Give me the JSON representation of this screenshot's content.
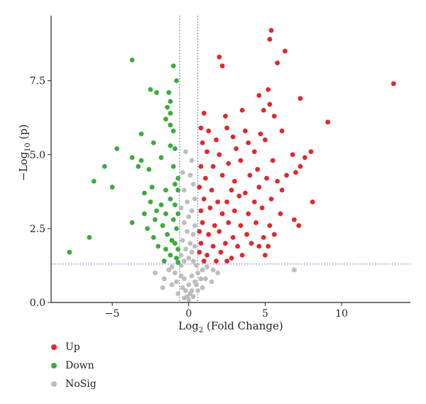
{
  "chart_data": {
    "type": "scatter",
    "xlabel_main": "Log",
    "xlabel_sub": "2",
    "xlabel_rest": " (Fold Change)",
    "ylabel_main": "−Log",
    "ylabel_sub": "10",
    "ylabel_rest": " (p)",
    "xlim": [
      -9,
      14.5
    ],
    "ylim": [
      0,
      9.7
    ],
    "x_ticks": [
      -5,
      0,
      5,
      10
    ],
    "x_tick_labels": [
      "−5",
      "0",
      "5",
      "10"
    ],
    "y_ticks": [
      0,
      2.5,
      5,
      7.5
    ],
    "y_tick_labels": [
      "0.0",
      "2.5",
      "5.0",
      "7.5"
    ],
    "thresholds": {
      "x": [
        -0.6,
        0.6
      ],
      "y": 1.3
    },
    "legend_position": "bottom-left",
    "series": [
      {
        "name": "Up",
        "color": "#e0292b",
        "points": [
          [
            5.4,
            9.2
          ],
          [
            5.3,
            8.9
          ],
          [
            6.3,
            8.5
          ],
          [
            2.0,
            8.3
          ],
          [
            5.8,
            8.1
          ],
          [
            2.2,
            8.0
          ],
          [
            13.4,
            7.4
          ],
          [
            5.2,
            7.2
          ],
          [
            7.3,
            6.9
          ],
          [
            4.6,
            7.0
          ],
          [
            5.3,
            6.7
          ],
          [
            9.1,
            6.1
          ],
          [
            1.0,
            6.4
          ],
          [
            2.4,
            6.3
          ],
          [
            3.5,
            6.5
          ],
          [
            4.9,
            6.5
          ],
          [
            5.6,
            6.3
          ],
          [
            0.8,
            5.9
          ],
          [
            1.3,
            5.8
          ],
          [
            2.5,
            5.9
          ],
          [
            3.7,
            5.8
          ],
          [
            4.7,
            5.7
          ],
          [
            6.1,
            5.8
          ],
          [
            0.9,
            5.4
          ],
          [
            1.8,
            5.5
          ],
          [
            2.9,
            5.6
          ],
          [
            3.9,
            5.4
          ],
          [
            5.0,
            5.5
          ],
          [
            6.8,
            5.0
          ],
          [
            7.6,
            4.9
          ],
          [
            8.0,
            5.1
          ],
          [
            1.2,
            5.1
          ],
          [
            2.0,
            5.0
          ],
          [
            3.1,
            5.2
          ],
          [
            4.3,
            5.1
          ],
          [
            5.5,
            4.8
          ],
          [
            7.3,
            4.6
          ],
          [
            0.8,
            4.6
          ],
          [
            1.6,
            4.6
          ],
          [
            2.6,
            4.7
          ],
          [
            3.4,
            4.8
          ],
          [
            4.5,
            4.5
          ],
          [
            6.4,
            4.3
          ],
          [
            7.0,
            4.4
          ],
          [
            1.1,
            4.2
          ],
          [
            2.2,
            4.3
          ],
          [
            3.0,
            4.1
          ],
          [
            4.0,
            4.3
          ],
          [
            5.1,
            4.2
          ],
          [
            5.8,
            4.1
          ],
          [
            0.7,
            3.9
          ],
          [
            1.5,
            3.8
          ],
          [
            2.8,
            3.8
          ],
          [
            3.7,
            3.7
          ],
          [
            4.6,
            3.9
          ],
          [
            6.1,
            3.8
          ],
          [
            1.0,
            3.5
          ],
          [
            1.9,
            3.4
          ],
          [
            2.5,
            3.4
          ],
          [
            3.3,
            3.6
          ],
          [
            4.3,
            3.4
          ],
          [
            5.4,
            3.5
          ],
          [
            8.1,
            3.4
          ],
          [
            0.8,
            3.1
          ],
          [
            1.4,
            3.2
          ],
          [
            2.2,
            3.0
          ],
          [
            3.0,
            3.1
          ],
          [
            3.9,
            3.0
          ],
          [
            4.8,
            3.2
          ],
          [
            6.0,
            3.0
          ],
          [
            6.9,
            2.8
          ],
          [
            0.9,
            2.7
          ],
          [
            1.7,
            2.6
          ],
          [
            2.6,
            2.7
          ],
          [
            3.4,
            2.6
          ],
          [
            4.4,
            2.7
          ],
          [
            5.3,
            2.6
          ],
          [
            0.7,
            2.4
          ],
          [
            1.3,
            2.3
          ],
          [
            2.0,
            2.4
          ],
          [
            2.9,
            2.2
          ],
          [
            3.8,
            2.3
          ],
          [
            4.9,
            2.2
          ],
          [
            5.6,
            2.3
          ],
          [
            7.2,
            2.6
          ],
          [
            0.8,
            2.0
          ],
          [
            1.6,
            1.9
          ],
          [
            2.4,
            2.0
          ],
          [
            3.2,
            1.9
          ],
          [
            4.1,
            2.0
          ],
          [
            4.6,
            1.9
          ],
          [
            5.2,
            1.9
          ],
          [
            0.7,
            1.7
          ],
          [
            1.2,
            1.6
          ],
          [
            2.1,
            1.7
          ],
          [
            2.8,
            1.5
          ],
          [
            3.5,
            1.6
          ],
          [
            5.0,
            1.6
          ],
          [
            1.0,
            1.4
          ],
          [
            1.8,
            1.4
          ],
          [
            2.5,
            1.4
          ]
        ]
      },
      {
        "name": "Down",
        "color": "#3daa3d",
        "points": [
          [
            -3.7,
            8.2
          ],
          [
            -1.0,
            8.0
          ],
          [
            -0.8,
            7.5
          ],
          [
            -2.5,
            7.2
          ],
          [
            -2.1,
            7.1
          ],
          [
            -1.3,
            7.1
          ],
          [
            -1.2,
            6.8
          ],
          [
            -1.4,
            6.6
          ],
          [
            -1.2,
            6.4
          ],
          [
            -1.5,
            6.2
          ],
          [
            -1.2,
            6.0
          ],
          [
            -3.1,
            5.7
          ],
          [
            -1.0,
            5.8
          ],
          [
            -4.7,
            5.2
          ],
          [
            -2.3,
            5.4
          ],
          [
            -1.2,
            5.3
          ],
          [
            -0.9,
            5.2
          ],
          [
            -3.7,
            4.9
          ],
          [
            -1.8,
            4.9
          ],
          [
            -3.1,
            4.8
          ],
          [
            -5.5,
            4.6
          ],
          [
            -3.3,
            4.6
          ],
          [
            -2.6,
            4.5
          ],
          [
            -1.0,
            4.6
          ],
          [
            -6.2,
            4.1
          ],
          [
            -0.7,
            4.2
          ],
          [
            -0.9,
            4.0
          ],
          [
            -5.0,
            3.9
          ],
          [
            -2.4,
            3.9
          ],
          [
            -2.9,
            3.7
          ],
          [
            -1.5,
            3.8
          ],
          [
            -0.7,
            3.8
          ],
          [
            -2.5,
            3.4
          ],
          [
            -1.8,
            3.3
          ],
          [
            -1.2,
            3.5
          ],
          [
            -0.9,
            3.3
          ],
          [
            -2.1,
            3.1
          ],
          [
            -2.9,
            3.0
          ],
          [
            -1.5,
            3.0
          ],
          [
            -0.7,
            3.0
          ],
          [
            -3.7,
            2.7
          ],
          [
            -2.2,
            2.8
          ],
          [
            -1.0,
            2.8
          ],
          [
            -2.7,
            2.5
          ],
          [
            -1.7,
            2.6
          ],
          [
            -0.8,
            2.5
          ],
          [
            -6.5,
            2.2
          ],
          [
            -1.4,
            2.3
          ],
          [
            -2.3,
            2.2
          ],
          [
            -1.1,
            2.1
          ],
          [
            -0.9,
            2.0
          ],
          [
            -2.0,
            1.9
          ],
          [
            -1.5,
            1.8
          ],
          [
            -0.7,
            1.8
          ],
          [
            -7.8,
            1.7
          ],
          [
            -1.2,
            1.6
          ],
          [
            -0.8,
            1.5
          ],
          [
            -1.6,
            1.4
          ],
          [
            -0.7,
            1.35
          ]
        ]
      },
      {
        "name": "NoSig",
        "color": "#bdbdbd",
        "points": [
          [
            -0.2,
            5.1
          ],
          [
            0.2,
            4.8
          ],
          [
            -0.4,
            4.4
          ],
          [
            0.1,
            4.3
          ],
          [
            0.3,
            4.0
          ],
          [
            -0.3,
            3.8
          ],
          [
            0.4,
            3.5
          ],
          [
            -0.1,
            3.4
          ],
          [
            -0.5,
            3.2
          ],
          [
            0.2,
            3.1
          ],
          [
            0.0,
            2.9
          ],
          [
            -0.3,
            2.7
          ],
          [
            0.4,
            2.6
          ],
          [
            -0.1,
            2.4
          ],
          [
            0.3,
            2.3
          ],
          [
            -0.4,
            2.1
          ],
          [
            0.1,
            2.0
          ],
          [
            0.4,
            1.9
          ],
          [
            -0.2,
            1.8
          ],
          [
            0.2,
            1.7
          ],
          [
            -0.5,
            1.6
          ],
          [
            0.0,
            1.5
          ],
          [
            0.3,
            1.4
          ],
          [
            -0.3,
            1.4
          ],
          [
            1.2,
            1.2
          ],
          [
            -1.1,
            1.2
          ],
          [
            0.9,
            1.1
          ],
          [
            1.6,
            1.1
          ],
          [
            -1.3,
            1.1
          ],
          [
            6.9,
            1.1
          ],
          [
            -2.2,
            1.0
          ],
          [
            1.9,
            1.0
          ],
          [
            -0.9,
            1.0
          ],
          [
            0.6,
            1.0
          ],
          [
            -0.5,
            0.9
          ],
          [
            0.2,
            0.9
          ],
          [
            1.1,
            0.8
          ],
          [
            -1.6,
            0.8
          ],
          [
            0.8,
            0.8
          ],
          [
            -0.3,
            0.8
          ],
          [
            0.4,
            0.7
          ],
          [
            -0.8,
            0.7
          ],
          [
            1.5,
            0.7
          ],
          [
            -1.1,
            0.6
          ],
          [
            0.0,
            0.6
          ],
          [
            0.5,
            0.6
          ],
          [
            -1.7,
            0.5
          ],
          [
            0.9,
            0.5
          ],
          [
            -0.4,
            0.5
          ],
          [
            0.2,
            0.4
          ],
          [
            -0.2,
            0.4
          ],
          [
            0.6,
            0.4
          ],
          [
            -0.7,
            0.3
          ],
          [
            0.1,
            0.3
          ],
          [
            -0.1,
            0.2
          ],
          [
            0.3,
            0.2
          ],
          [
            -0.3,
            0.15
          ],
          [
            0.0,
            0.1
          ],
          [
            -0.5,
            1.25
          ],
          [
            0.5,
            1.25
          ]
        ]
      }
    ]
  },
  "legend": {
    "items": [
      {
        "label": "Up",
        "color": "#e0292b"
      },
      {
        "label": "Down",
        "color": "#3daa3d"
      },
      {
        "label": "NoSig",
        "color": "#bdbdbd"
      }
    ]
  }
}
